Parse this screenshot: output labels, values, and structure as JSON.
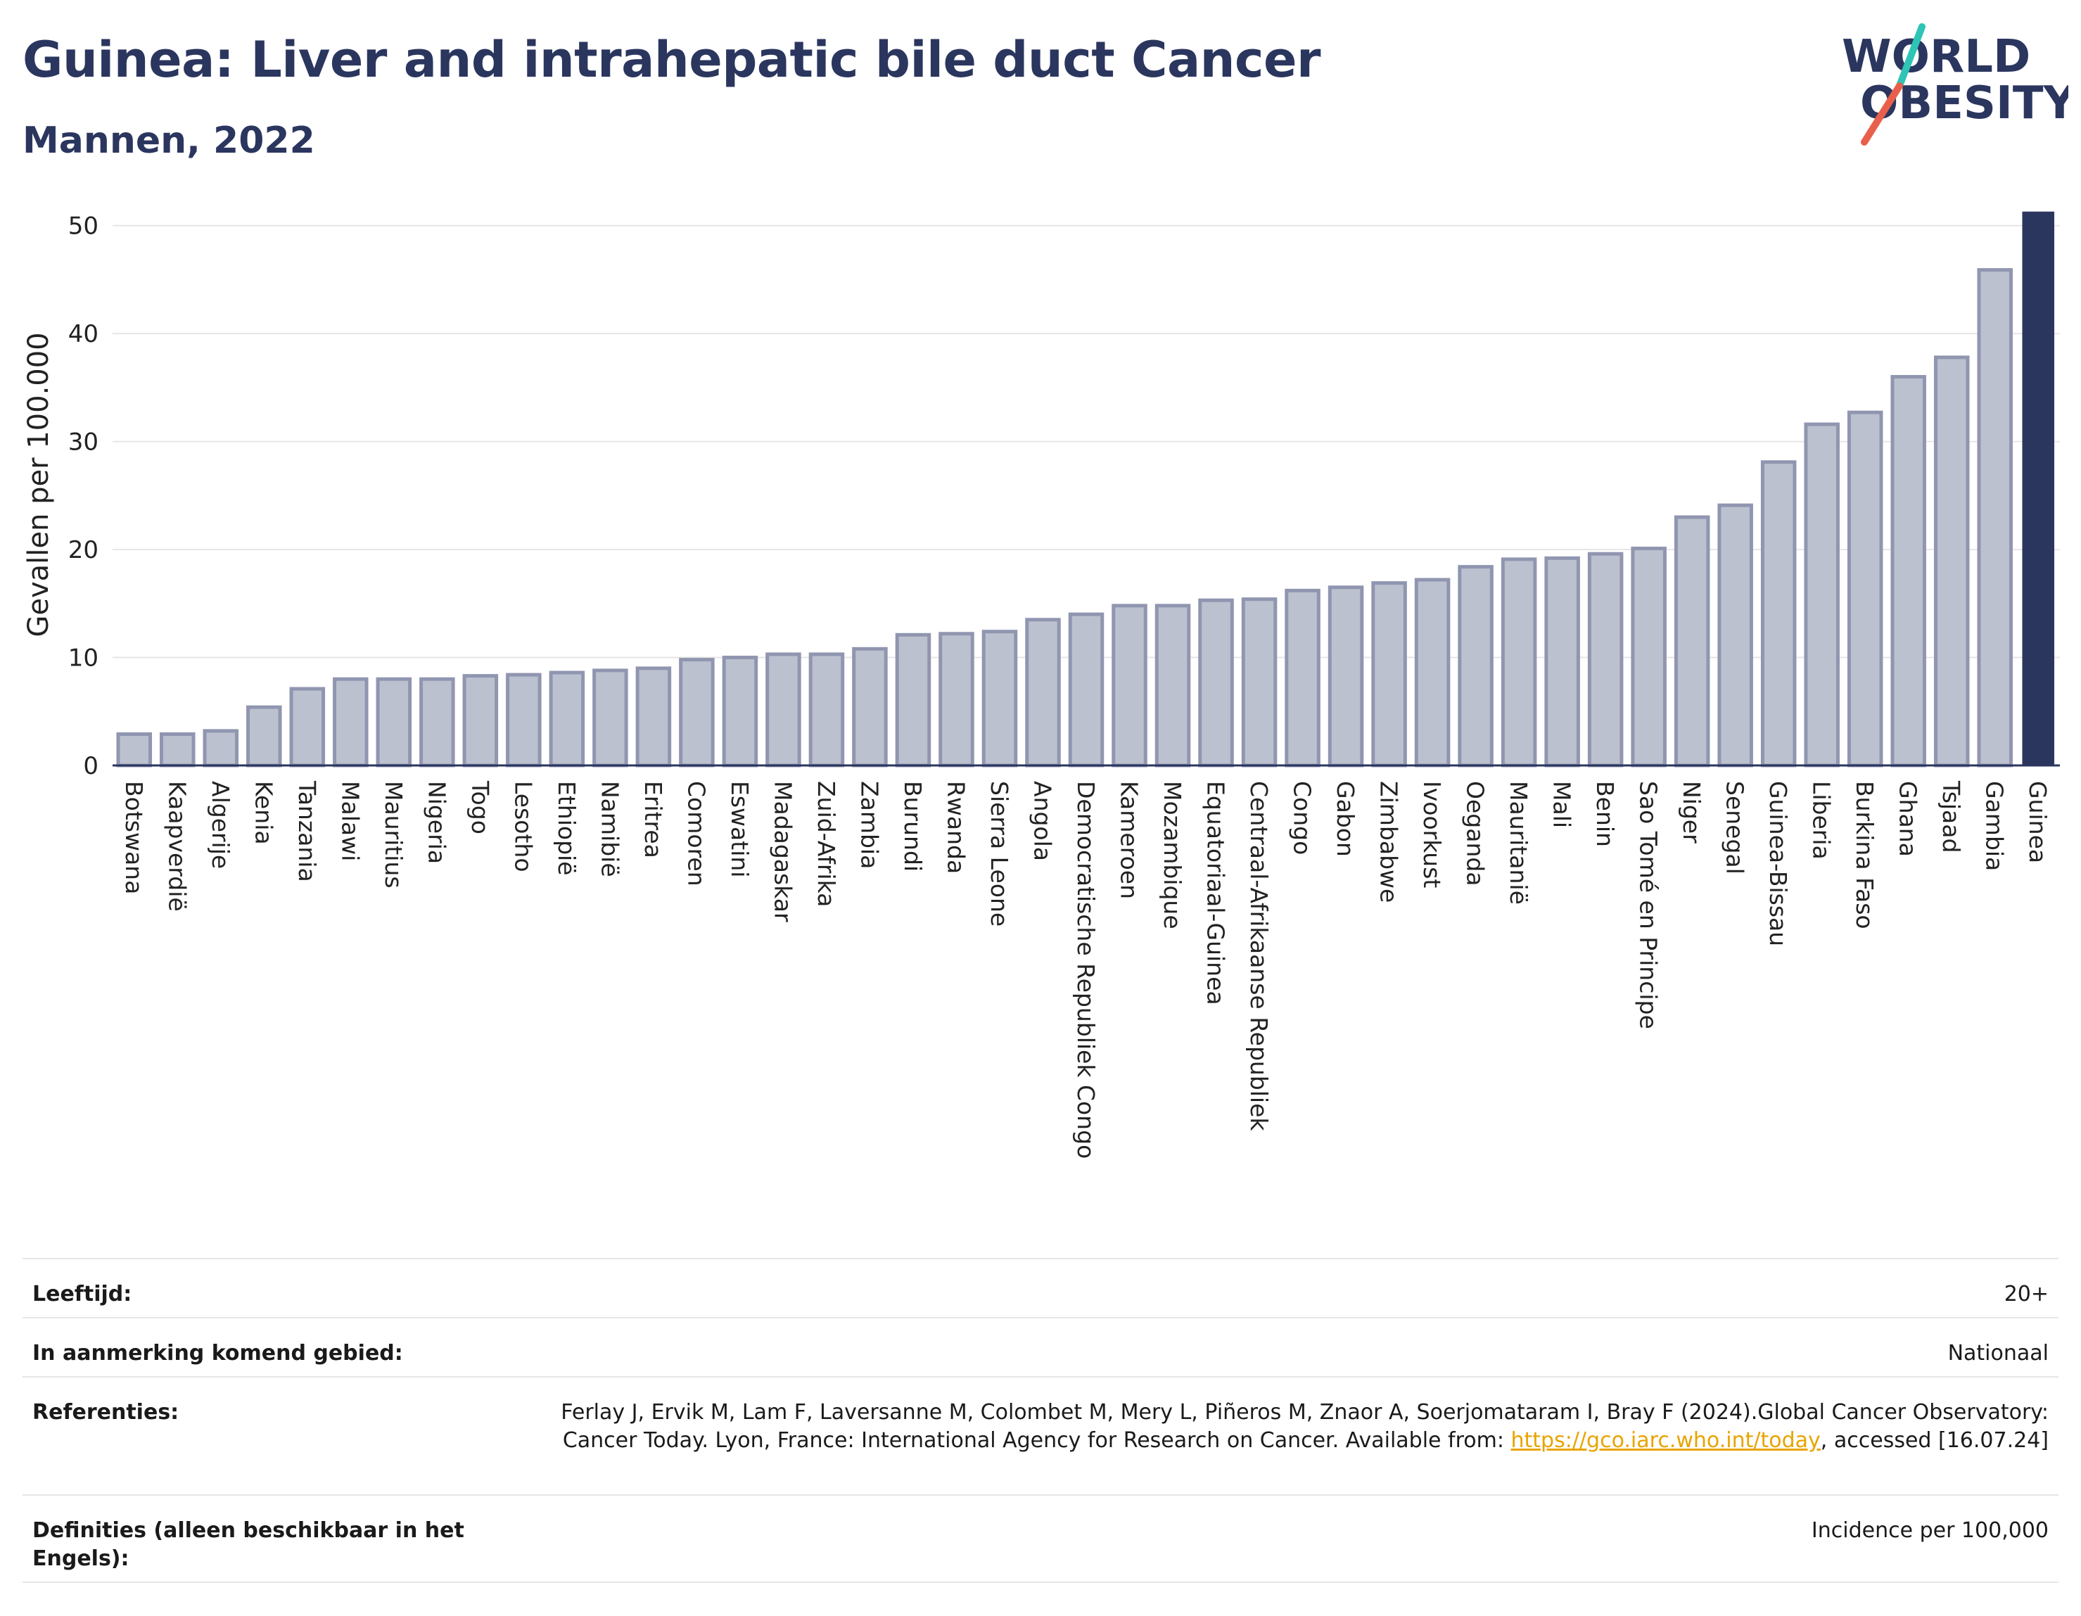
{
  "header": {
    "title": "Guinea: Liver and intrahepatic bile duct Cancer",
    "subtitle": "Mannen, 2022"
  },
  "logo": {
    "line1": "WORLD",
    "line2": "OBESITY",
    "text_color": "#2b365f",
    "accent_teal": "#2ec4b6",
    "accent_red": "#e8604c"
  },
  "chart_data": {
    "type": "bar",
    "title": "Guinea: Liver and intrahepatic bile duct Cancer",
    "subtitle": "Mannen, 2022",
    "xlabel": "",
    "ylabel": "Gevallen per 100.000",
    "ylim": [
      0,
      52
    ],
    "yticks": [
      0,
      10,
      20,
      30,
      40,
      50
    ],
    "grid": true,
    "highlight": "Guinea",
    "colors": {
      "bar": "#bcc1cf",
      "bar_edge": "#9096b0",
      "highlight": "#2b365f"
    },
    "categories": [
      "Botswana",
      "Kaapverdië",
      "Algerije",
      "Kenia",
      "Tanzania",
      "Malawi",
      "Mauritius",
      "Nigeria",
      "Togo",
      "Lesotho",
      "Ethiopië",
      "Namibië",
      "Eritrea",
      "Comoren",
      "Eswatini",
      "Madagaskar",
      "Zuid-Afrika",
      "Zambia",
      "Burundi",
      "Rwanda",
      "Sierra Leone",
      "Angola",
      "Democratische Republiek Congo",
      "Kameroen",
      "Mozambique",
      "Equatoriaal-Guinea",
      "Centraal-Afrikaanse Republiek",
      "Congo",
      "Gabon",
      "Zimbabwe",
      "Ivoorkust",
      "Oeganda",
      "Mauritanië",
      "Mali",
      "Benin",
      "Sao Tomé en Principe",
      "Niger",
      "Senegal",
      "Guinea-Bissau",
      "Liberia",
      "Burkina Faso",
      "Ghana",
      "Tsjaad",
      "Gambia",
      "Guinea"
    ],
    "values": [
      2.9,
      2.9,
      3.2,
      5.4,
      7.1,
      8.0,
      8.0,
      8.0,
      8.3,
      8.4,
      8.6,
      8.8,
      9.0,
      9.8,
      10.0,
      10.3,
      10.3,
      10.8,
      12.1,
      12.2,
      12.4,
      13.5,
      14.0,
      14.8,
      14.8,
      15.3,
      15.4,
      16.2,
      16.5,
      16.9,
      17.2,
      18.4,
      19.1,
      19.2,
      19.6,
      20.1,
      23.0,
      24.1,
      28.1,
      31.6,
      32.7,
      36.0,
      37.8,
      45.9,
      51.3
    ]
  },
  "info": {
    "rows": [
      {
        "label": "Leeftijd:",
        "value": "20+"
      },
      {
        "label": "In aanmerking komend gebied:",
        "value": "Nationaal"
      },
      {
        "label": "Referenties:",
        "value_pre": "Ferlay J, Ervik M, Lam F, Laversanne M, Colombet M, Mery L, Piñeros M, Znaor A, Soerjomataram I, Bray F (2024).Global Cancer Observatory: Cancer Today. Lyon, France: International Agency for Research on Cancer. Available from: ",
        "link": "https://gco.iarc.who.int/today",
        "value_post": ", accessed [16.07.24]"
      },
      {
        "label": "Definities (alleen beschikbaar in het Engels):",
        "value": "Incidence per 100,000"
      }
    ]
  }
}
